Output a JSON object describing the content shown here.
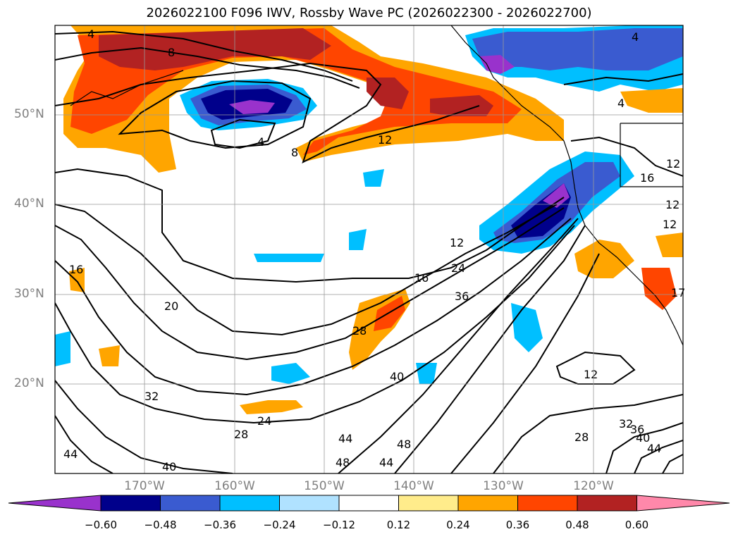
{
  "title": "2026022100 F096 IWV, Rossby Wave PC (2026022300 - 2026022700)",
  "lat_labels": [
    "50°N",
    "40°N",
    "30°N",
    "20°N"
  ],
  "lon_labels": [
    "170°W",
    "160°W",
    "150°W",
    "140°W",
    "130°W",
    "120°W"
  ],
  "colorbar": {
    "colors": [
      "#9932cc",
      "#00008b",
      "#3a5bd0",
      "#00bfff",
      "#b0e2ff",
      "#ffffff",
      "#ffec8b",
      "#ffa500",
      "#ff4500",
      "#b22222",
      "#ff88aa"
    ],
    "ticks": [
      "−0.60",
      "−0.48",
      "−0.36",
      "−0.24",
      "−0.12",
      "0.12",
      "0.24",
      "0.36",
      "0.48",
      "0.60"
    ]
  },
  "contour_labels": [
    "4",
    "8",
    "4",
    "8",
    "12",
    "4",
    "16",
    "20",
    "12",
    "16",
    "24",
    "36",
    "28",
    "40",
    "32",
    "24",
    "28",
    "40",
    "44",
    "44",
    "48",
    "44",
    "48",
    "12",
    "28",
    "32",
    "36",
    "40",
    "44",
    "16",
    "12",
    "4",
    "12",
    "17",
    "12"
  ]
}
